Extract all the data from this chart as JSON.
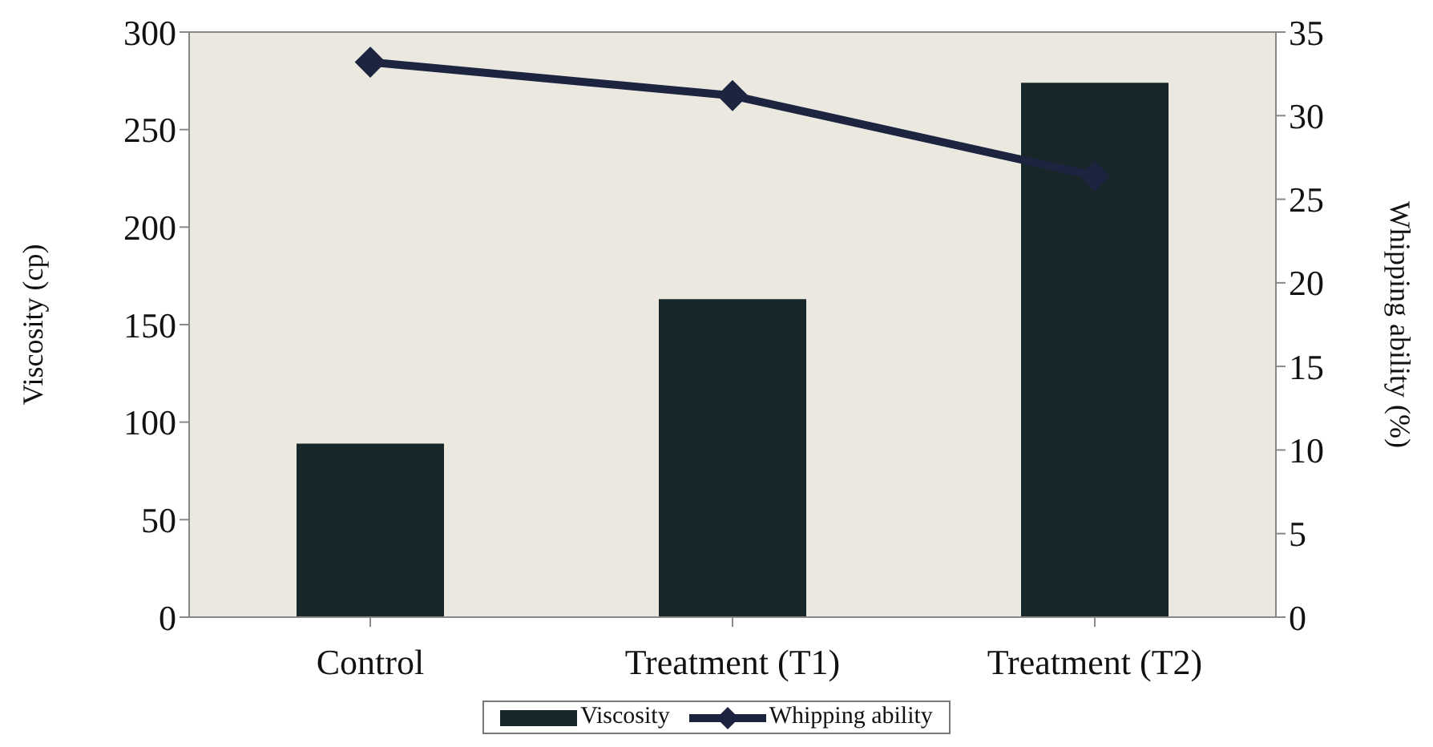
{
  "chart_data": {
    "type": "bar",
    "categories": [
      "Control",
      "Treatment (T1)",
      "Treatment (T2)"
    ],
    "ylabel": "Viscosity (cp)",
    "y2label": "Whipping ability (%)",
    "ylim": [
      0,
      300
    ],
    "yticks": [
      0,
      50,
      100,
      150,
      200,
      250,
      300
    ],
    "y2lim": [
      0,
      35
    ],
    "y2ticks": [
      0,
      5,
      10,
      15,
      20,
      25,
      30,
      35
    ],
    "legend": "bottom",
    "series": [
      {
        "name": "Viscosity",
        "color": "#172729",
        "values": [
          89,
          163,
          274
        ]
      },
      {
        "name": "Whipping ability",
        "type": "line",
        "axis": "y2",
        "color": "#1c2440",
        "marker": "diamond",
        "values": [
          33.2,
          31.2,
          26.4
        ]
      }
    ]
  }
}
